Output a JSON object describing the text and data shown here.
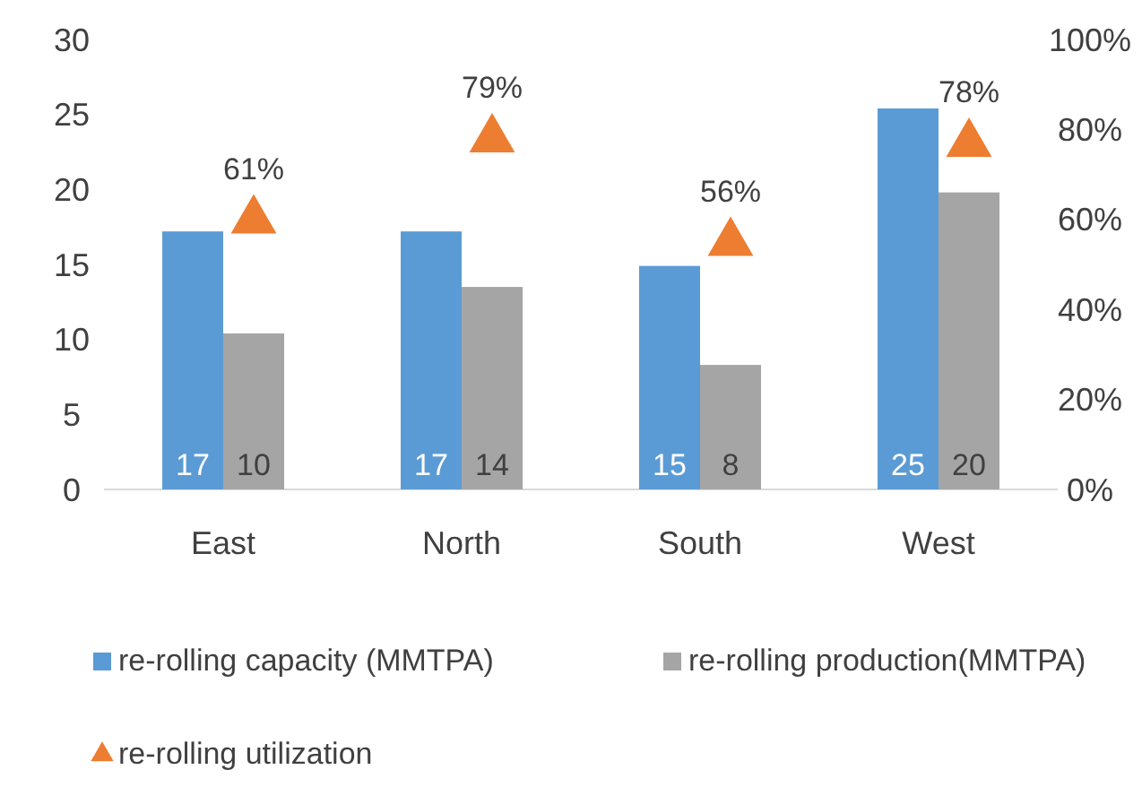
{
  "chart_data": {
    "type": "bar",
    "categories": [
      "East",
      "North",
      "South",
      "West"
    ],
    "series": [
      {
        "name": "re-rolling capacity (MMTPA)",
        "color": "#5b9bd5",
        "values": [
          17.2,
          17.2,
          14.9,
          25.4
        ],
        "value_labels": [
          "17",
          "17",
          "15",
          "25"
        ]
      },
      {
        "name": "re-rolling production(MMTPA)",
        "color": "#a5a5a5",
        "values": [
          10.4,
          13.5,
          8.3,
          19.8
        ],
        "value_labels": [
          "10",
          "14",
          "8",
          "20"
        ]
      },
      {
        "name": "re-rolling utilization",
        "type": "scatter",
        "axis": "y2",
        "marker": "triangle",
        "color": "#ed7d31",
        "values": [
          61,
          79,
          56,
          78
        ],
        "value_labels": [
          "61%",
          "79%",
          "56%",
          "78%"
        ]
      }
    ],
    "ylim": [
      0,
      30
    ],
    "yticks": [
      0,
      5,
      10,
      15,
      20,
      25,
      30
    ],
    "y2lim": [
      0,
      100
    ],
    "y2ticks": [
      {
        "value": 0,
        "label": "0%"
      },
      {
        "value": 20,
        "label": "20%"
      },
      {
        "value": 40,
        "label": "40%"
      },
      {
        "value": 60,
        "label": "60%"
      },
      {
        "value": 80,
        "label": "80%"
      },
      {
        "value": 100,
        "label": "100%"
      }
    ],
    "grid": false,
    "legend": "bottom"
  }
}
